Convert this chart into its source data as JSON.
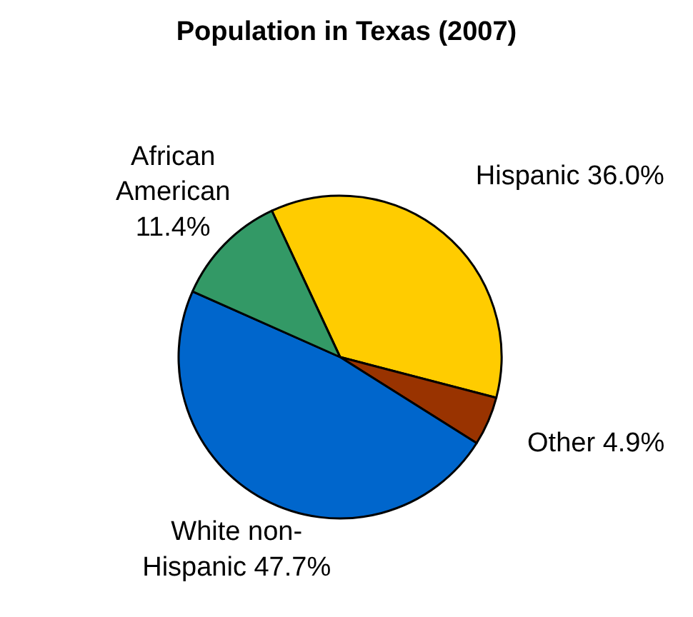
{
  "chart_data": {
    "type": "pie",
    "title": "Population in Texas (2007)",
    "categories": [
      "Hispanic",
      "Other",
      "White non-Hispanic",
      "African American"
    ],
    "values": [
      36.0,
      4.9,
      47.7,
      11.4
    ],
    "value_labels": [
      "36.0%",
      "4.9%",
      "47.7%",
      "11.4%"
    ],
    "colors": [
      "#ffcc00",
      "#993300",
      "#0066cc",
      "#339966"
    ]
  }
}
